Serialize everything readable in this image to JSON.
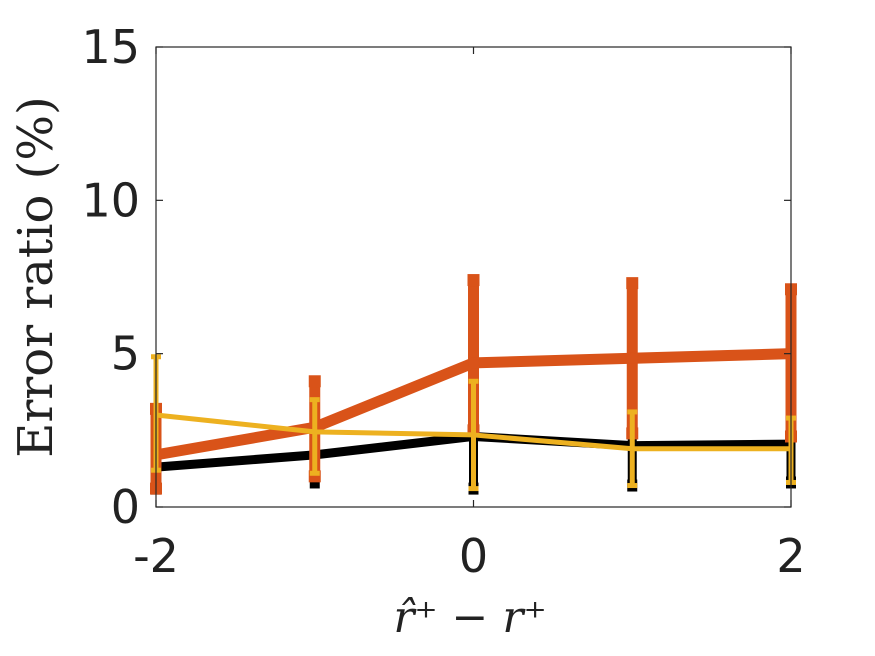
{
  "chart_data": {
    "type": "line",
    "title": "",
    "xlabel": "r̂⁺ − r⁺",
    "ylabel": "Error ratio (%)",
    "xlim": [
      -2,
      2
    ],
    "ylim": [
      0,
      15
    ],
    "xticks": [
      "-2",
      "0",
      "2"
    ],
    "yticks": [
      "0",
      "5",
      "10",
      "15"
    ],
    "grid": false,
    "legend": "none",
    "x": [
      -2,
      -1,
      0,
      1,
      2
    ],
    "series": [
      {
        "color": "#000000",
        "values": [
          1.3,
          1.7,
          2.3,
          2.0,
          2.05
        ],
        "err_low": [
          0.6,
          0.8,
          0.6,
          0.7,
          0.8
        ],
        "err_high": [
          2.5,
          2.8,
          3.6,
          3.2,
          2.8
        ]
      },
      {
        "color": "#D95319",
        "values": [
          1.7,
          2.6,
          4.7,
          4.85,
          5.0
        ],
        "err_low": [
          0.6,
          1.0,
          2.5,
          2.4,
          2.3
        ],
        "err_high": [
          3.2,
          4.1,
          7.4,
          7.3,
          7.1
        ]
      },
      {
        "color": "#EDB120",
        "values": [
          3.0,
          2.45,
          2.35,
          1.9,
          1.9
        ],
        "err_low": [
          1.2,
          1.1,
          0.6,
          0.7,
          0.8
        ],
        "err_high": [
          4.9,
          3.5,
          4.1,
          3.1,
          2.9
        ]
      }
    ]
  }
}
